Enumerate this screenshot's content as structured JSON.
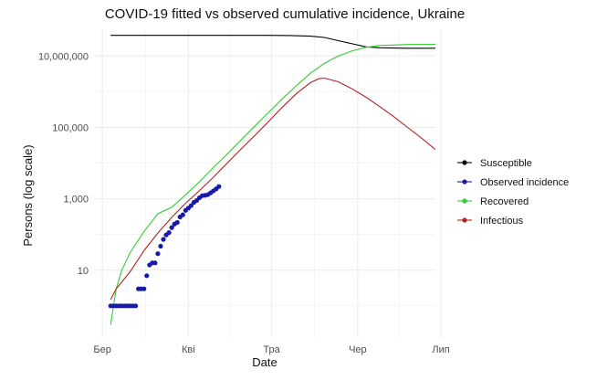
{
  "chart_data": {
    "type": "line",
    "title": "COVID-19 fitted vs observed cumulative incidence, Ukraine",
    "xlabel": "Date",
    "ylabel": "Persons (log scale)",
    "y_scale": "log10",
    "xlim": [
      -3,
      120
    ],
    "ylim_log10": [
      -0.9,
      7.75
    ],
    "x_ticks": [
      {
        "value": 0,
        "label": "Бер"
      },
      {
        "value": 31,
        "label": "Кві"
      },
      {
        "value": 61,
        "label": "Тра"
      },
      {
        "value": 92,
        "label": "Чер"
      },
      {
        "value": 122,
        "label": "Лип"
      }
    ],
    "y_ticks": [
      {
        "value": 10,
        "label": "10"
      },
      {
        "value": 1000,
        "label": "1,000"
      },
      {
        "value": 100000,
        "label": "100,000"
      },
      {
        "value": 10000000,
        "label": "10,000,000"
      }
    ],
    "legend": [
      "Susceptible",
      "Observed incidence",
      "Recovered",
      "Infectious"
    ],
    "legend_position": "right",
    "colors": {
      "Susceptible": "#000000",
      "Observed incidence": "#1a1aaa",
      "Recovered": "#33cc33",
      "Infectious": "#b22222",
      "grid": "#ebebeb"
    },
    "series": [
      {
        "name": "Susceptible",
        "type": "line",
        "x": [
          3,
          20,
          40,
          60,
          68,
          75,
          80,
          85,
          90,
          95,
          100,
          110,
          120
        ],
        "y": [
          38000000,
          38000000,
          38000000,
          37900000,
          37500000,
          36000000,
          33000000,
          27000000,
          22000000,
          18000000,
          17000000,
          16500000,
          16500000
        ]
      },
      {
        "name": "Recovered",
        "type": "line",
        "x": [
          3,
          5,
          7,
          10,
          15,
          20,
          25,
          30,
          35,
          40,
          45,
          50,
          55,
          60,
          65,
          70,
          75,
          80,
          85,
          90,
          95,
          100,
          110,
          120
        ],
        "y": [
          0.3,
          3,
          10,
          31,
          120,
          380,
          580,
          1300,
          3000,
          7500,
          18000,
          45000,
          110000,
          270000,
          650000,
          1500000,
          3300000,
          6200000,
          10000000,
          14000000,
          17500000,
          19700000,
          21000000,
          21300000
        ]
      },
      {
        "name": "Infectious",
        "type": "line",
        "x": [
          3,
          5,
          10,
          15,
          20,
          25,
          30,
          35,
          40,
          45,
          50,
          55,
          60,
          65,
          70,
          75,
          78,
          80,
          85,
          90,
          95,
          100,
          105,
          110,
          115,
          120
        ],
        "y": [
          1.5,
          3,
          9,
          35,
          110,
          300,
          750,
          1700,
          4000,
          10000,
          25000,
          60000,
          150000,
          380000,
          900000,
          1800000,
          2300000,
          2400000,
          1900000,
          1200000,
          700000,
          380000,
          200000,
          100000,
          50000,
          24000
        ]
      },
      {
        "name": "Observed incidence",
        "type": "scatter",
        "x": [
          3,
          4,
          5,
          6,
          7,
          8,
          9,
          10,
          11,
          12,
          13,
          14,
          15,
          16,
          17,
          18,
          19,
          20,
          21,
          22,
          23,
          24,
          25,
          26,
          27,
          28,
          29,
          30,
          31,
          32,
          33,
          34,
          35,
          36,
          37,
          38,
          39,
          40,
          41,
          42
        ],
        "y": [
          1,
          1,
          1,
          1,
          1,
          1,
          1,
          1,
          1,
          1,
          3,
          3,
          3,
          7,
          14,
          16,
          16,
          29,
          47,
          73,
          97,
          113,
          156,
          196,
          218,
          310,
          356,
          475,
          548,
          645,
          794,
          897,
          1072,
          1225,
          1251,
          1308,
          1462,
          1668,
          1892,
          2203
        ]
      }
    ]
  }
}
